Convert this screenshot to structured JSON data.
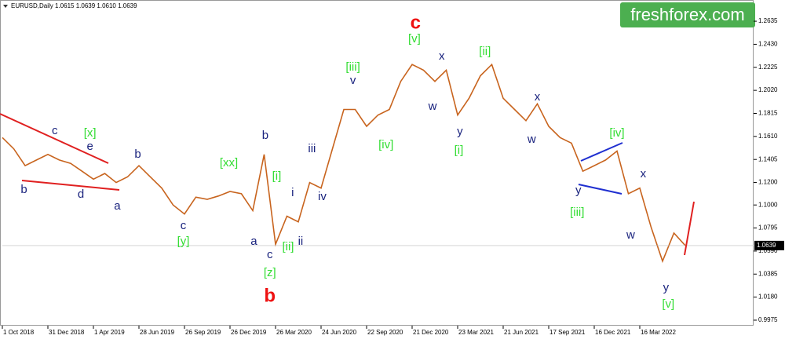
{
  "chart_data": {
    "type": "line",
    "title": "EURUSD,Daily  1.0615 1.0639 1.0610 1.0639",
    "brand": "freshforex.com",
    "categories": [
      "1 Oct 2018",
      null,
      null,
      null,
      "31 Dec 2018",
      null,
      null,
      null,
      "1 Apr 2019",
      null,
      null,
      null,
      "28 Jun 2019",
      null,
      null,
      null,
      "26 Sep 2019",
      null,
      null,
      null,
      "26 Dec 2019",
      null,
      null,
      null,
      "26 Mar 2020",
      null,
      null,
      null,
      "24 Jun 2020",
      null,
      null,
      null,
      "22 Sep 2020",
      null,
      null,
      null,
      "21 Dec 2020",
      null,
      null,
      null,
      "23 Mar 2021",
      null,
      null,
      null,
      "21 Jun 2021",
      null,
      null,
      null,
      "17 Sep 2021",
      null,
      null,
      null,
      "16 Dec 2021",
      null,
      null,
      null,
      "16 Mar 2022",
      null,
      null,
      null,
      null,
      null,
      null,
      null,
      null,
      null,
      null
    ],
    "values": [
      1.16,
      1.15,
      1.135,
      1.14,
      1.145,
      1.14,
      1.137,
      1.13,
      1.123,
      1.128,
      1.12,
      1.125,
      1.135,
      1.125,
      1.115,
      1.1,
      1.092,
      1.107,
      1.105,
      1.108,
      1.112,
      1.11,
      1.095,
      1.145,
      1.065,
      1.09,
      1.085,
      1.12,
      1.115,
      1.15,
      1.185,
      1.185,
      1.17,
      1.18,
      1.185,
      1.21,
      1.225,
      1.22,
      1.21,
      1.22,
      1.18,
      1.195,
      1.215,
      1.225,
      1.195,
      1.185,
      1.175,
      1.19,
      1.17,
      1.16,
      1.155,
      1.13,
      1.135,
      1.14,
      1.148,
      1.11,
      1.115,
      1.08,
      1.05,
      1.075,
      1.0639,
      null,
      null,
      null,
      null,
      null,
      null
    ],
    "color": "#c8641e",
    "ylim": [
      0.9926,
      1.2824
    ],
    "yticks": [
      1.2635,
      {
        "value": 1.243,
        "label": "1.2430"
      },
      1.2225,
      {
        "value": 1.202,
        "label": "1.2020"
      },
      1.1815,
      {
        "value": 1.161,
        "label": "1.1610"
      },
      1.1405,
      {
        "value": 1.12,
        "label": "1.1200"
      },
      {
        "value": 1.1,
        "label": "1.1000"
      },
      1.0795,
      {
        "value": 1.059,
        "label": "1.0590"
      },
      1.0385,
      {
        "value": 1.018,
        "label": "1.0180"
      },
      0.9975
    ],
    "last_price": 1.0639,
    "annotations": [
      {
        "text": "c",
        "x": 4.6,
        "y": 1.1657,
        "color": "#1a237e"
      },
      {
        "text": "e",
        "x": 7.7,
        "y": 1.1518,
        "color": "#1a237e"
      },
      {
        "text": "[x]",
        "x": 7.7,
        "y": 1.1636,
        "color": "#33dd33"
      },
      {
        "text": "b",
        "x": 1.9,
        "y": 1.1134,
        "color": "#1a237e"
      },
      {
        "text": "d",
        "x": 6.9,
        "y": 1.1092,
        "color": "#1a237e"
      },
      {
        "text": "a",
        "x": 10.1,
        "y": 1.0987,
        "color": "#1a237e"
      },
      {
        "text": "b",
        "x": 11.9,
        "y": 1.1448,
        "color": "#1a237e"
      },
      {
        "text": "c",
        "x": 15.9,
        "y": 1.0812,
        "color": "#1a237e"
      },
      {
        "text": "[y]",
        "x": 15.9,
        "y": 1.0673,
        "color": "#33dd33"
      },
      {
        "text": "[xx]",
        "x": 19.9,
        "y": 1.1371,
        "color": "#33dd33"
      },
      {
        "text": "b",
        "x": 23.1,
        "y": 1.1616,
        "color": "#1a237e"
      },
      {
        "text": "a",
        "x": 22.1,
        "y": 1.0673,
        "color": "#1a237e"
      },
      {
        "text": "c",
        "x": 23.5,
        "y": 1.0554,
        "color": "#1a237e"
      },
      {
        "text": "[z]",
        "x": 23.5,
        "y": 1.0393,
        "color": "#33dd33"
      },
      {
        "text": "b",
        "x": 23.5,
        "y": 1.0184,
        "color": "#ee1111"
      },
      {
        "text": "[i]",
        "x": 24.1,
        "y": 1.1252,
        "color": "#33dd33"
      },
      {
        "text": "i",
        "x": 25.5,
        "y": 1.1106,
        "color": "#1a237e"
      },
      {
        "text": "[ii]",
        "x": 25.1,
        "y": 1.0624,
        "color": "#33dd33"
      },
      {
        "text": "ii",
        "x": 26.2,
        "y": 1.0673,
        "color": "#1a237e"
      },
      {
        "text": "iii",
        "x": 27.2,
        "y": 1.1497,
        "color": "#1a237e"
      },
      {
        "text": "iv",
        "x": 28.1,
        "y": 1.1071,
        "color": "#1a237e"
      },
      {
        "text": "[iii]",
        "x": 30.8,
        "y": 1.2223,
        "color": "#33dd33"
      },
      {
        "text": "v",
        "x": 30.8,
        "y": 1.2104,
        "color": "#1a237e"
      },
      {
        "text": "[iv]",
        "x": 33.7,
        "y": 1.1532,
        "color": "#33dd33"
      },
      {
        "text": "c",
        "x": 36.3,
        "y": 1.2614,
        "color": "#ee1111"
      },
      {
        "text": "[v]",
        "x": 36.2,
        "y": 1.2474,
        "color": "#33dd33"
      },
      {
        "text": "x",
        "x": 38.6,
        "y": 1.2321,
        "color": "#1a237e"
      },
      {
        "text": "w",
        "x": 37.8,
        "y": 1.1874,
        "color": "#1a237e"
      },
      {
        "text": "y",
        "x": 40.2,
        "y": 1.165,
        "color": "#1a237e"
      },
      {
        "text": "[i]",
        "x": 40.1,
        "y": 1.1483,
        "color": "#33dd33"
      },
      {
        "text": "[ii]",
        "x": 42.4,
        "y": 1.2363,
        "color": "#33dd33"
      },
      {
        "text": "x",
        "x": 47.0,
        "y": 1.1958,
        "color": "#1a237e"
      },
      {
        "text": "w",
        "x": 46.5,
        "y": 1.1581,
        "color": "#1a237e"
      },
      {
        "text": "y",
        "x": 50.6,
        "y": 1.1127,
        "color": "#1a237e"
      },
      {
        "text": "[iii]",
        "x": 50.5,
        "y": 1.0931,
        "color": "#33dd33"
      },
      {
        "text": "[iv]",
        "x": 54.0,
        "y": 1.1636,
        "color": "#33dd33"
      },
      {
        "text": "x",
        "x": 56.3,
        "y": 1.1273,
        "color": "#1a237e"
      },
      {
        "text": "w",
        "x": 55.2,
        "y": 1.0729,
        "color": "#1a237e"
      },
      {
        "text": "y",
        "x": 58.3,
        "y": 1.0261,
        "color": "#1a237e"
      },
      {
        "text": "[v]",
        "x": 58.5,
        "y": 1.0114,
        "color": "#33dd33"
      }
    ]
  }
}
